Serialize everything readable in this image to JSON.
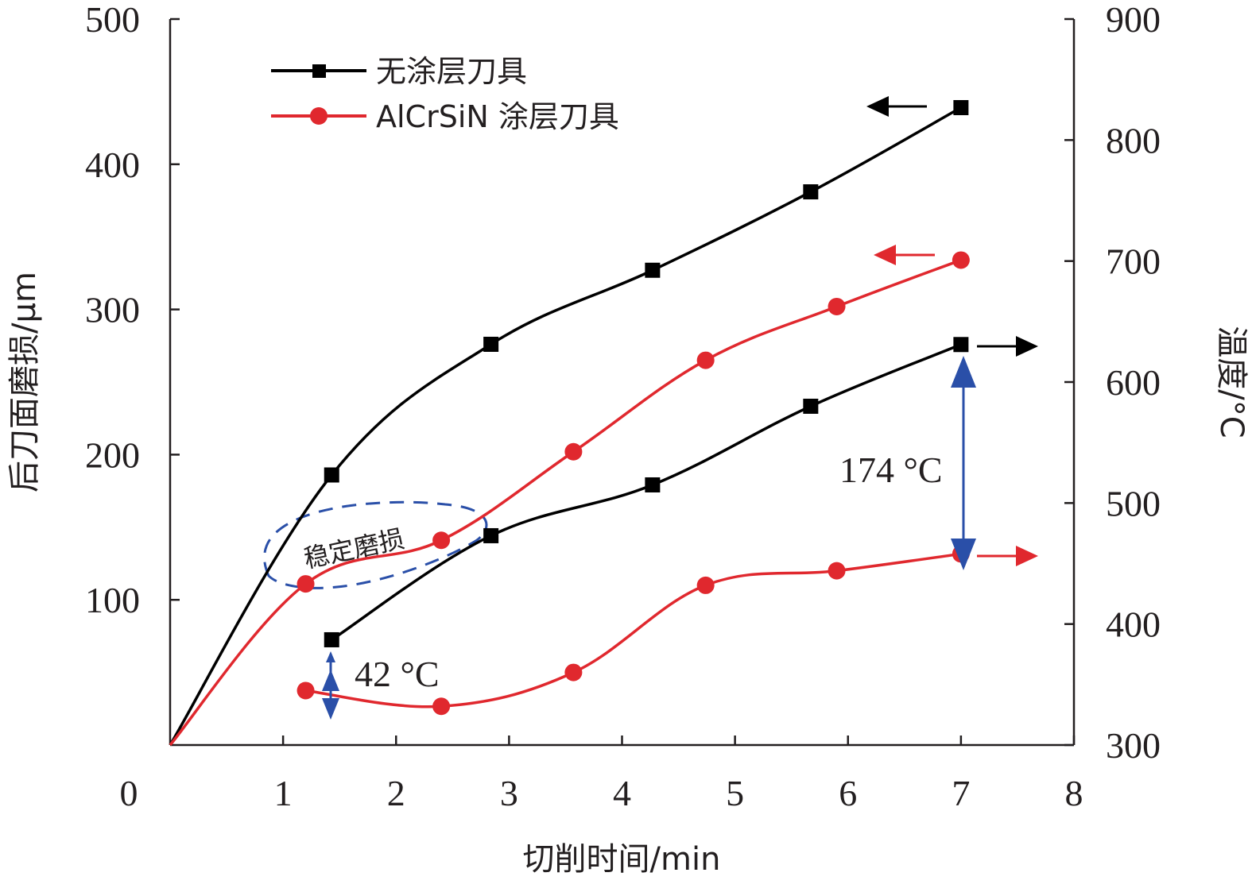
{
  "chart_data": {
    "type": "line",
    "xlabel": "切削时间/min",
    "ylabel_left": "后刀面磨损/μm",
    "ylabel_right": "温度/°C",
    "xlim": [
      0,
      8
    ],
    "ylim_left": [
      0,
      500
    ],
    "ylim_right": [
      300,
      900
    ],
    "x_ticks": [
      "0",
      "1",
      "2",
      "3",
      "4",
      "5",
      "6",
      "7",
      "8"
    ],
    "y_left_ticks": [
      "100",
      "200",
      "300",
      "400",
      "500"
    ],
    "y_right_ticks": [
      "300",
      "400",
      "500",
      "600",
      "700",
      "800",
      "900"
    ],
    "grid": false,
    "legend": "top-left",
    "series": [
      {
        "name": "无涂层刀具",
        "axis": "left",
        "color": "#000000",
        "marker": "square",
        "x": [
          0,
          1.43,
          2.84,
          4.27,
          5.67,
          7.0
        ],
        "y": [
          0,
          186,
          276,
          327,
          381,
          439
        ]
      },
      {
        "name": "AlCrSiN 涂层刀具",
        "axis": "left",
        "color": "#e0282e",
        "marker": "circle",
        "x": [
          0,
          1.2,
          2.4,
          3.57,
          4.74,
          5.9,
          7.0
        ],
        "y": [
          0,
          111,
          141,
          202,
          265,
          302,
          334
        ]
      },
      {
        "name": "无涂层刀具",
        "axis": "right",
        "color": "#000000",
        "marker": "square",
        "x": [
          1.43,
          2.84,
          4.27,
          5.67,
          7.0
        ],
        "y": [
          387,
          473,
          515,
          580,
          631
        ]
      },
      {
        "name": "AlCrSiN 涂层刀具",
        "axis": "right",
        "color": "#e0282e",
        "marker": "circle",
        "x": [
          1.2,
          2.4,
          3.57,
          4.74,
          5.9,
          7.0
        ],
        "y": [
          345,
          332,
          360,
          432,
          444,
          458
        ]
      }
    ],
    "annotations": [
      {
        "text": "42 °C",
        "x": 1.43,
        "y_from": 345,
        "y_to": 387,
        "axis": "right"
      },
      {
        "text": "174 °C",
        "x": 7.0,
        "y_from": 458,
        "y_to": 631,
        "axis": "right"
      },
      {
        "text": "稳定磨损"
      }
    ],
    "axis_arrows": [
      {
        "series": "无涂层刀具 wear",
        "direction": "left",
        "color": "#000000"
      },
      {
        "series": "AlCrSiN 涂层刀具 wear",
        "direction": "left",
        "color": "#e0282e"
      },
      {
        "series": "无涂层刀具 temperature",
        "direction": "right",
        "color": "#000000"
      },
      {
        "series": "AlCrSiN 涂层刀具 temperature",
        "direction": "right",
        "color": "#e0282e"
      }
    ]
  },
  "colors": {
    "black": "#000000",
    "red": "#e0282e",
    "blue": "#2a4fa8",
    "axis": "#231f20"
  }
}
